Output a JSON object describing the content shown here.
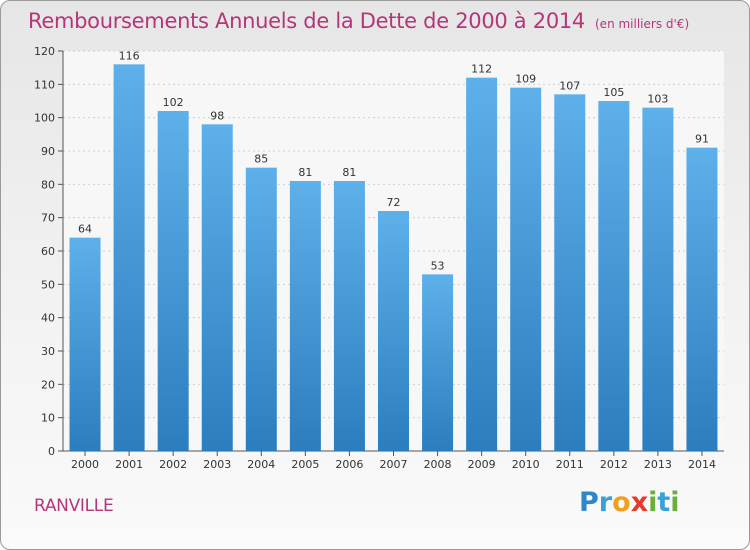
{
  "title": "Remboursements Annuels de la Dette de 2000 à 2014",
  "unit": "(en milliers d'€)",
  "commune": "RANVILLE",
  "logo": {
    "p": "P",
    "r": "r",
    "o": "o",
    "x": "x",
    "i1": "i",
    "t": "t",
    "i2": "i"
  },
  "colors": {
    "bar_top": "#5eb0ea",
    "bar_bottom": "#2c7dbe",
    "title": "#b5357a"
  },
  "chart_data": {
    "type": "bar",
    "title": "Remboursements Annuels de la Dette de 2000 à 2014",
    "xlabel": "",
    "ylabel": "",
    "ylim": [
      0,
      120
    ],
    "yticks": [
      0,
      10,
      20,
      30,
      40,
      50,
      60,
      70,
      80,
      90,
      100,
      110,
      120
    ],
    "grid": true,
    "categories": [
      "2000",
      "2001",
      "2002",
      "2003",
      "2004",
      "2005",
      "2006",
      "2007",
      "2008",
      "2009",
      "2010",
      "2011",
      "2012",
      "2013",
      "2014"
    ],
    "values": [
      64,
      116,
      102,
      98,
      85,
      81,
      81,
      72,
      53,
      112,
      109,
      107,
      105,
      103,
      91
    ]
  }
}
